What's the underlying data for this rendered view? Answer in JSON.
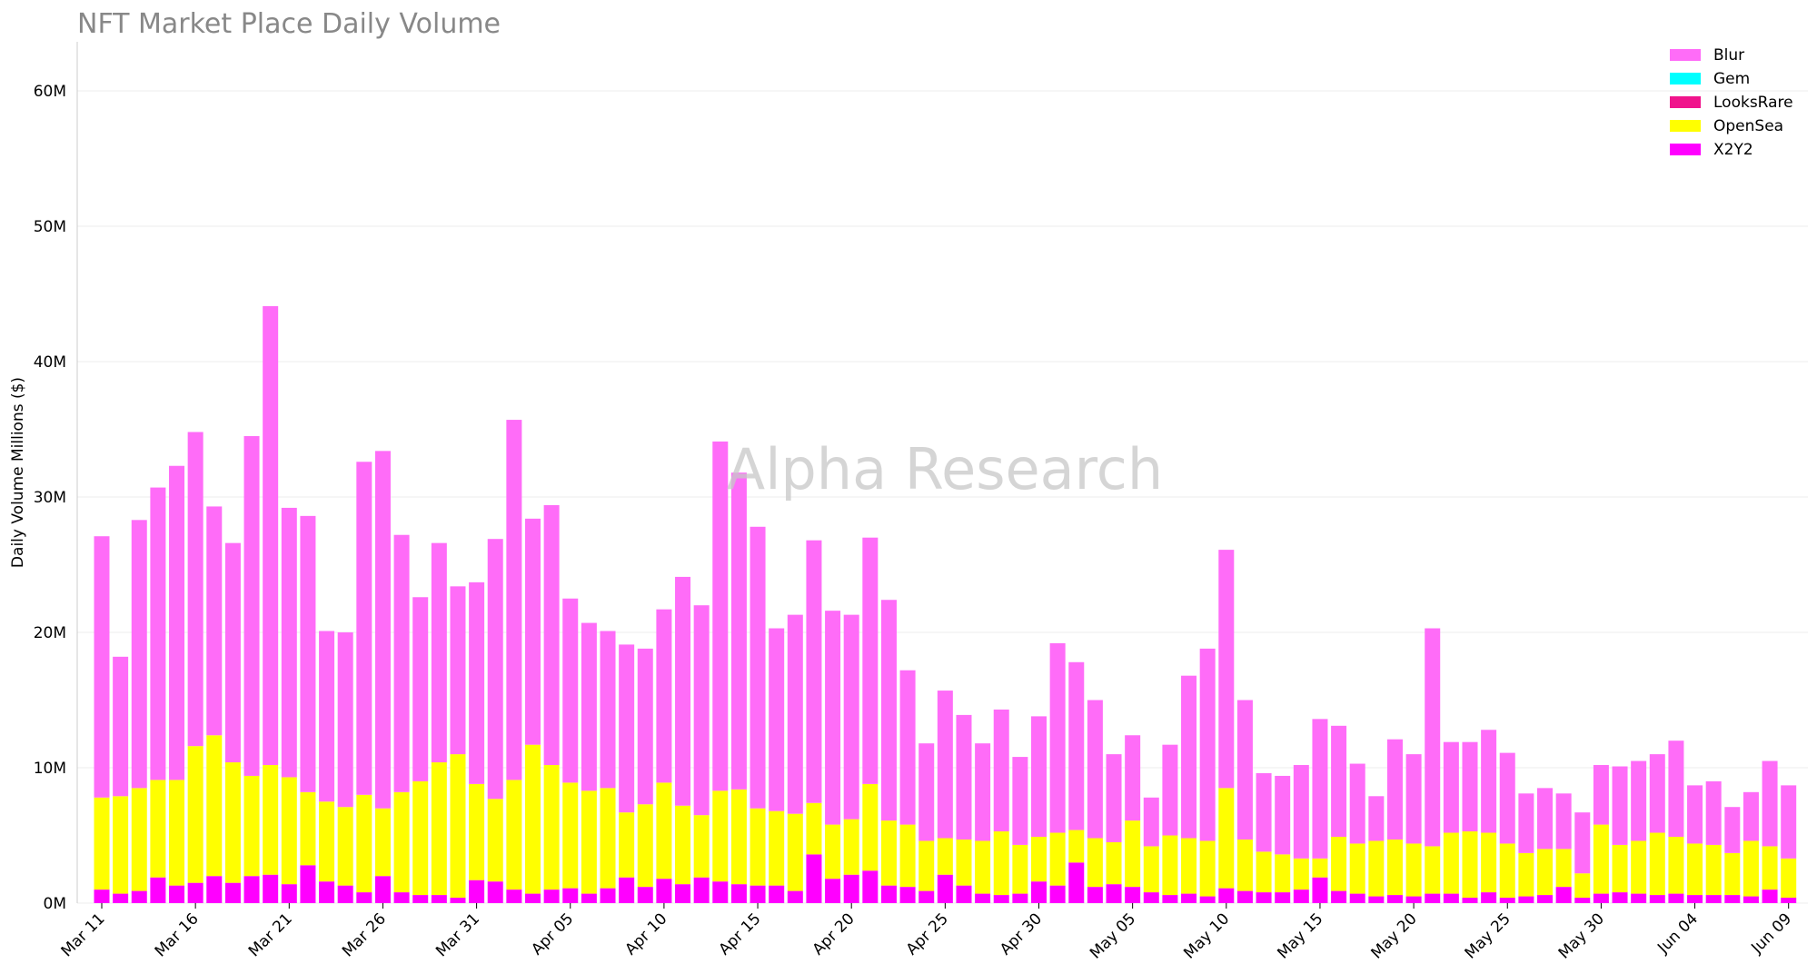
{
  "chart_data": {
    "type": "bar",
    "stacked": true,
    "title": "NFT Market Place Daily Volume",
    "watermark": "Alpha Research",
    "ylabel": "Daily Volume Millions ($)",
    "xlabel": "",
    "ylim": [
      0,
      63
    ],
    "yticks": [
      {
        "value": 0,
        "label": "0M"
      },
      {
        "value": 10,
        "label": "10M"
      },
      {
        "value": 20,
        "label": "20M"
      },
      {
        "value": 30,
        "label": "30M"
      },
      {
        "value": 40,
        "label": "40M"
      },
      {
        "value": 50,
        "label": "50M"
      },
      {
        "value": 60,
        "label": "60M"
      }
    ],
    "xticks": [
      {
        "index": 0,
        "label": "Mar 11"
      },
      {
        "index": 5,
        "label": "Mar 16"
      },
      {
        "index": 10,
        "label": "Mar 21"
      },
      {
        "index": 15,
        "label": "Mar 26"
      },
      {
        "index": 20,
        "label": "Mar 31"
      },
      {
        "index": 25,
        "label": "Apr 05"
      },
      {
        "index": 30,
        "label": "Apr 10"
      },
      {
        "index": 35,
        "label": "Apr 15"
      },
      {
        "index": 40,
        "label": "Apr 20"
      },
      {
        "index": 45,
        "label": "Apr 25"
      },
      {
        "index": 50,
        "label": "Apr 30"
      },
      {
        "index": 55,
        "label": "May 05"
      },
      {
        "index": 60,
        "label": "May 10"
      },
      {
        "index": 65,
        "label": "May 15"
      },
      {
        "index": 70,
        "label": "May 20"
      },
      {
        "index": 75,
        "label": "May 25"
      },
      {
        "index": 80,
        "label": "May 30"
      },
      {
        "index": 85,
        "label": "Jun 04"
      },
      {
        "index": 90,
        "label": "Jun 09"
      }
    ],
    "x_start": "Mar 11",
    "x_end": "Jun 09",
    "grid": "horizontal",
    "legend_position": "top-right",
    "stack_order": [
      "X2Y2",
      "LooksRare",
      "Gem",
      "OpenSea",
      "Blur"
    ],
    "series": [
      {
        "name": "Blur",
        "color": "#ff6cf8",
        "values": [
          19.3,
          10.3,
          19.8,
          21.6,
          23.2,
          23.2,
          16.9,
          16.2,
          25.1,
          33.9,
          19.9,
          20.4,
          12.6,
          12.9,
          24.6,
          26.4,
          19.0,
          13.6,
          16.2,
          12.4,
          14.9,
          19.2,
          26.6,
          16.7,
          19.2,
          13.6,
          12.4,
          11.6,
          12.4,
          11.5,
          12.8,
          16.9,
          15.5,
          25.8,
          23.4,
          20.8,
          13.5,
          14.7,
          19.4,
          15.8,
          15.1,
          18.2,
          16.3,
          11.4,
          7.2,
          10.9,
          9.2,
          7.2,
          9.0,
          6.5,
          8.9,
          14.0,
          12.4,
          10.2,
          6.5,
          6.3,
          3.6,
          6.7,
          12.0,
          14.2,
          17.6,
          10.3,
          5.8,
          5.8,
          6.9,
          10.3,
          8.2,
          5.9,
          3.3,
          7.4,
          6.6,
          16.1,
          6.7,
          6.6,
          7.6,
          6.7,
          4.4,
          4.5,
          4.1,
          4.5,
          4.4,
          5.8,
          5.9,
          5.8,
          7.1,
          4.3,
          4.7,
          3.4,
          3.6,
          6.3,
          5.4
        ]
      },
      {
        "name": "Gem",
        "color": "#00ffff",
        "values": [
          0,
          0,
          0,
          0,
          0,
          0,
          0,
          0,
          0,
          0,
          0,
          0,
          0,
          0,
          0,
          0,
          0,
          0,
          0,
          0,
          0,
          0,
          0,
          0,
          0,
          0,
          0,
          0,
          0,
          0,
          0,
          0,
          0,
          0,
          0,
          0,
          0,
          0,
          0,
          0,
          0,
          0,
          0,
          0,
          0,
          0,
          0,
          0,
          0,
          0,
          0,
          0,
          0,
          0,
          0,
          0,
          0,
          0,
          0,
          0,
          0,
          0,
          0,
          0,
          0,
          0,
          0,
          0,
          0,
          0,
          0,
          0,
          0,
          0,
          0,
          0,
          0,
          0,
          0,
          0,
          0,
          0,
          0,
          0,
          0,
          0,
          0,
          0,
          0,
          0,
          0
        ]
      },
      {
        "name": "LooksRare",
        "color": "#f0148c",
        "values": [
          0,
          0,
          0,
          0,
          0,
          0,
          0,
          0,
          0,
          0,
          0,
          0,
          0,
          0,
          0,
          0,
          0,
          0,
          0,
          0,
          0,
          0,
          0,
          0,
          0,
          0,
          0,
          0,
          0,
          0,
          0,
          0,
          0,
          0,
          0,
          0,
          0,
          0,
          0,
          0,
          0,
          0,
          0,
          0,
          0,
          0,
          0,
          0,
          0,
          0,
          0,
          0,
          0,
          0,
          0,
          0,
          0,
          0,
          0,
          0,
          0,
          0,
          0,
          0,
          0,
          0,
          0,
          0,
          0,
          0,
          0,
          0,
          0,
          0,
          0,
          0,
          0,
          0,
          0,
          0,
          0,
          0,
          0,
          0,
          0,
          0,
          0,
          0,
          0,
          0,
          0
        ]
      },
      {
        "name": "OpenSea",
        "color": "#ffff00",
        "values": [
          6.8,
          7.2,
          7.6,
          7.2,
          7.8,
          10.1,
          10.4,
          8.9,
          7.4,
          8.1,
          7.9,
          5.4,
          5.9,
          5.8,
          7.2,
          5.0,
          7.4,
          8.4,
          9.8,
          10.6,
          7.1,
          6.1,
          8.1,
          11.0,
          9.2,
          7.8,
          7.6,
          7.4,
          4.8,
          6.1,
          7.1,
          5.8,
          4.6,
          6.7,
          7.0,
          5.7,
          5.5,
          5.7,
          3.8,
          4.0,
          4.1,
          6.4,
          4.8,
          4.6,
          3.7,
          2.7,
          3.4,
          3.9,
          4.7,
          3.6,
          3.3,
          3.9,
          2.4,
          3.6,
          3.1,
          4.9,
          3.4,
          4.4,
          4.1,
          4.1,
          7.4,
          3.8,
          3.0,
          2.8,
          2.3,
          1.4,
          4.0,
          3.7,
          4.1,
          4.1,
          3.9,
          3.5,
          4.5,
          4.9,
          4.4,
          4.0,
          3.2,
          3.4,
          2.8,
          1.8,
          5.1,
          3.5,
          3.9,
          4.6,
          4.2,
          3.8,
          3.7,
          3.1,
          4.1,
          3.2,
          2.9
        ]
      },
      {
        "name": "X2Y2",
        "color": "#ff00ff",
        "values": [
          1.0,
          0.7,
          0.9,
          1.9,
          1.3,
          1.5,
          2.0,
          1.5,
          2.0,
          2.1,
          1.4,
          2.8,
          1.6,
          1.3,
          0.8,
          2.0,
          0.8,
          0.6,
          0.6,
          0.4,
          1.7,
          1.6,
          1.0,
          0.7,
          1.0,
          1.1,
          0.7,
          1.1,
          1.9,
          1.2,
          1.8,
          1.4,
          1.9,
          1.6,
          1.4,
          1.3,
          1.3,
          0.9,
          3.6,
          1.8,
          2.1,
          2.4,
          1.3,
          1.2,
          0.9,
          2.1,
          1.3,
          0.7,
          0.6,
          0.7,
          1.6,
          1.3,
          3.0,
          1.2,
          1.4,
          1.2,
          0.8,
          0.6,
          0.7,
          0.5,
          1.1,
          0.9,
          0.8,
          0.8,
          1.0,
          1.9,
          0.9,
          0.7,
          0.5,
          0.6,
          0.5,
          0.7,
          0.7,
          0.4,
          0.8,
          0.4,
          0.5,
          0.6,
          1.2,
          0.4,
          0.7,
          0.8,
          0.7,
          0.6,
          0.7,
          0.6,
          0.6,
          0.6,
          0.5,
          1.0,
          0.4
        ]
      }
    ]
  }
}
